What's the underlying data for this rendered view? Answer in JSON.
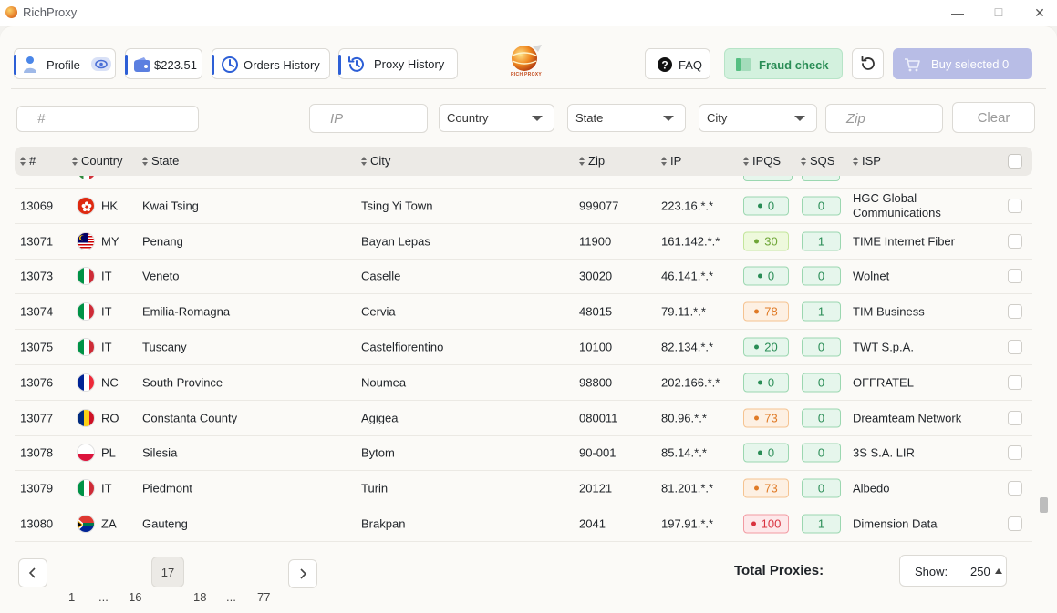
{
  "window": {
    "title": "RichProxy",
    "minimize": "—",
    "maximize": "☐",
    "close": "✕"
  },
  "toolbar": {
    "profile_label": "Profile",
    "balance": "$223.51",
    "orders_history": "Orders History",
    "proxy_history": "Proxy History",
    "logo_text": "RICH PROXY",
    "faq": "FAQ",
    "fraud_check": "Fraud check",
    "buy_selected": "Buy selected 0"
  },
  "filters": {
    "number_placeholder": "#",
    "ip_placeholder": "IP",
    "country": "Country",
    "state": "State",
    "city": "City",
    "zip_placeholder": "Zip",
    "clear": "Clear"
  },
  "table": {
    "headers": {
      "num": "#",
      "country": "Country",
      "state": "State",
      "city": "City",
      "zip": "Zip",
      "ip": "IP",
      "ipqs": "IPQS",
      "sqs": "SQS",
      "isp": "ISP"
    },
    "rows": [
      {
        "id": "13069",
        "cc": "HK",
        "state": "Kwai Tsing",
        "city": "Tsing Yi Town",
        "zip": "999077",
        "ip": "223.16.*.*",
        "ipqs": "0",
        "ipqs_level": "green",
        "sqs": "0",
        "isp": "HGC Global Communications"
      },
      {
        "id": "13071",
        "cc": "MY",
        "state": "Penang",
        "city": "Bayan Lepas",
        "zip": "11900",
        "ip": "161.142.*.*",
        "ipqs": "30",
        "ipqs_level": "lime",
        "sqs": "1",
        "isp": "TIME Internet Fiber"
      },
      {
        "id": "13073",
        "cc": "IT",
        "state": "Veneto",
        "city": "Caselle",
        "zip": "30020",
        "ip": "46.141.*.*",
        "ipqs": "0",
        "ipqs_level": "green",
        "sqs": "0",
        "isp": "Wolnet"
      },
      {
        "id": "13074",
        "cc": "IT",
        "state": "Emilia-Romagna",
        "city": "Cervia",
        "zip": "48015",
        "ip": "79.11.*.*",
        "ipqs": "78",
        "ipqs_level": "orange",
        "sqs": "1",
        "isp": "TIM Business"
      },
      {
        "id": "13075",
        "cc": "IT",
        "state": "Tuscany",
        "city": "Castelfiorentino",
        "zip": "10100",
        "ip": "82.134.*.*",
        "ipqs": "20",
        "ipqs_level": "green",
        "sqs": "0",
        "isp": "TWT S.p.A."
      },
      {
        "id": "13076",
        "cc": "NC",
        "state": "South Province",
        "city": "Noumea",
        "zip": "98800",
        "ip": "202.166.*.*",
        "ipqs": "0",
        "ipqs_level": "green",
        "sqs": "0",
        "isp": "OFFRATEL"
      },
      {
        "id": "13077",
        "cc": "RO",
        "state": "Constanta County",
        "city": "Agigea",
        "zip": "080011",
        "ip": "80.96.*.*",
        "ipqs": "73",
        "ipqs_level": "orange",
        "sqs": "0",
        "isp": "Dreamteam Network"
      },
      {
        "id": "13078",
        "cc": "PL",
        "state": "Silesia",
        "city": "Bytom",
        "zip": "90-001",
        "ip": "85.14.*.*",
        "ipqs": "0",
        "ipqs_level": "green",
        "sqs": "0",
        "isp": "3S S.A. LIR"
      },
      {
        "id": "13079",
        "cc": "IT",
        "state": "Piedmont",
        "city": "Turin",
        "zip": "20121",
        "ip": "81.201.*.*",
        "ipqs": "73",
        "ipqs_level": "orange",
        "sqs": "0",
        "isp": "Albedo"
      },
      {
        "id": "13080",
        "cc": "ZA",
        "state": "Gauteng",
        "city": "Brakpan",
        "zip": "2041",
        "ip": "197.91.*.*",
        "ipqs": "100",
        "ipqs_level": "red",
        "sqs": "1",
        "isp": "Dimension Data"
      }
    ]
  },
  "pagination": {
    "pages": [
      "1",
      "...",
      "16",
      "17",
      "18",
      "...",
      "77"
    ],
    "current": "17",
    "prev": "‹",
    "next": "›"
  },
  "footer": {
    "total_label": "Total Proxies:",
    "show_label": "Show:",
    "show_value": "250"
  },
  "colors": {
    "accent": "#2d5fd6",
    "green": "#2a8d56",
    "orange": "#e07a26",
    "red": "#d9323f",
    "buy_button": "#b8bde6"
  }
}
